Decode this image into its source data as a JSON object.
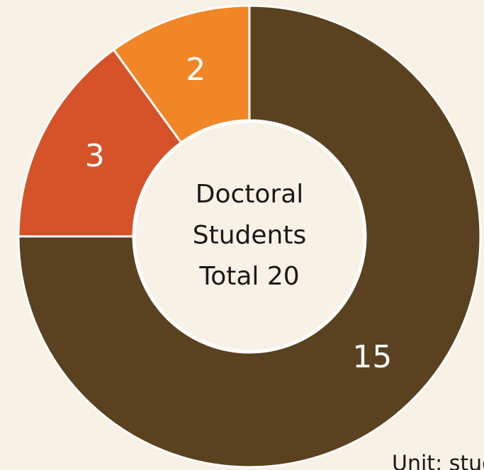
{
  "chart_data": {
    "type": "donut",
    "categories": [
      null,
      null,
      null
    ],
    "values": [
      15,
      3,
      2
    ],
    "colors": [
      "#5a4220",
      "#d65228",
      "#f18627"
    ],
    "center_text": [
      "Doctoral",
      "Students",
      "Total 20"
    ],
    "note": "Unit: students"
  }
}
